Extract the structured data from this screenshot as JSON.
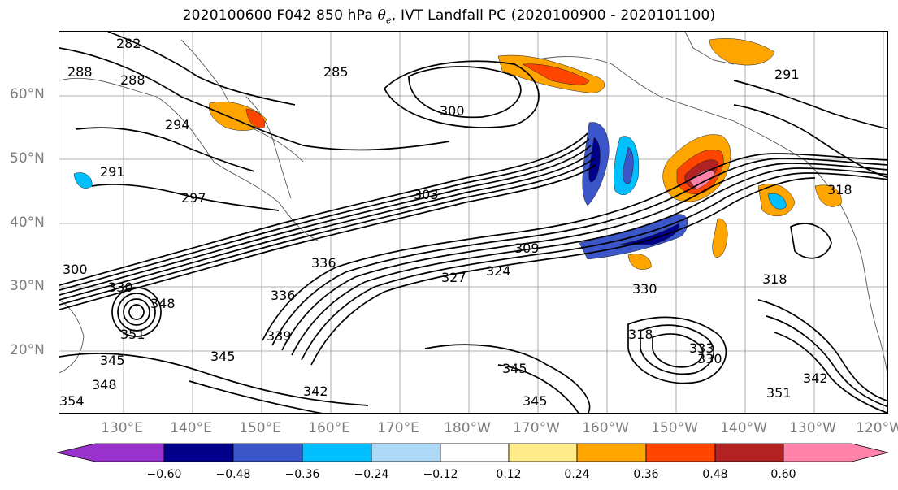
{
  "title": {
    "prefix": "2020100600 F042 850 hPa ",
    "symbol": "θ",
    "subscript": "e",
    "suffix": ", IVT Landfall PC (2020100900 - 2020101100)"
  },
  "axes": {
    "lat_labels": [
      "60°N",
      "50°N",
      "40°N",
      "30°N",
      "20°N"
    ],
    "lon_labels": [
      "130°E",
      "140°E",
      "150°E",
      "160°E",
      "170°E",
      "180°W",
      "170°W",
      "160°W",
      "150°W",
      "140°W",
      "130°W",
      "120°W"
    ]
  },
  "contour_labels": [
    "282",
    "285",
    "288",
    "288",
    "291",
    "291",
    "294",
    "297",
    "300",
    "300",
    "303",
    "309",
    "318",
    "318",
    "318",
    "324",
    "327",
    "330",
    "330",
    "336",
    "339",
    "342",
    "342",
    "345",
    "345",
    "345",
    "345",
    "348",
    "348",
    "351",
    "351",
    "354",
    "336",
    "333",
    "330"
  ],
  "colorbar": {
    "colors": [
      "#9932cc",
      "#00008b",
      "#3a56c8",
      "#00bfff",
      "#add8f6",
      "#ffffff",
      "#ffeb8a",
      "#ffa500",
      "#ff4500",
      "#b22222",
      "#ff82ab"
    ],
    "tick_labels": [
      "−0.60",
      "−0.48",
      "−0.36",
      "−0.24",
      "−0.12",
      "0.12",
      "0.24",
      "0.36",
      "0.48",
      "0.60"
    ]
  }
}
